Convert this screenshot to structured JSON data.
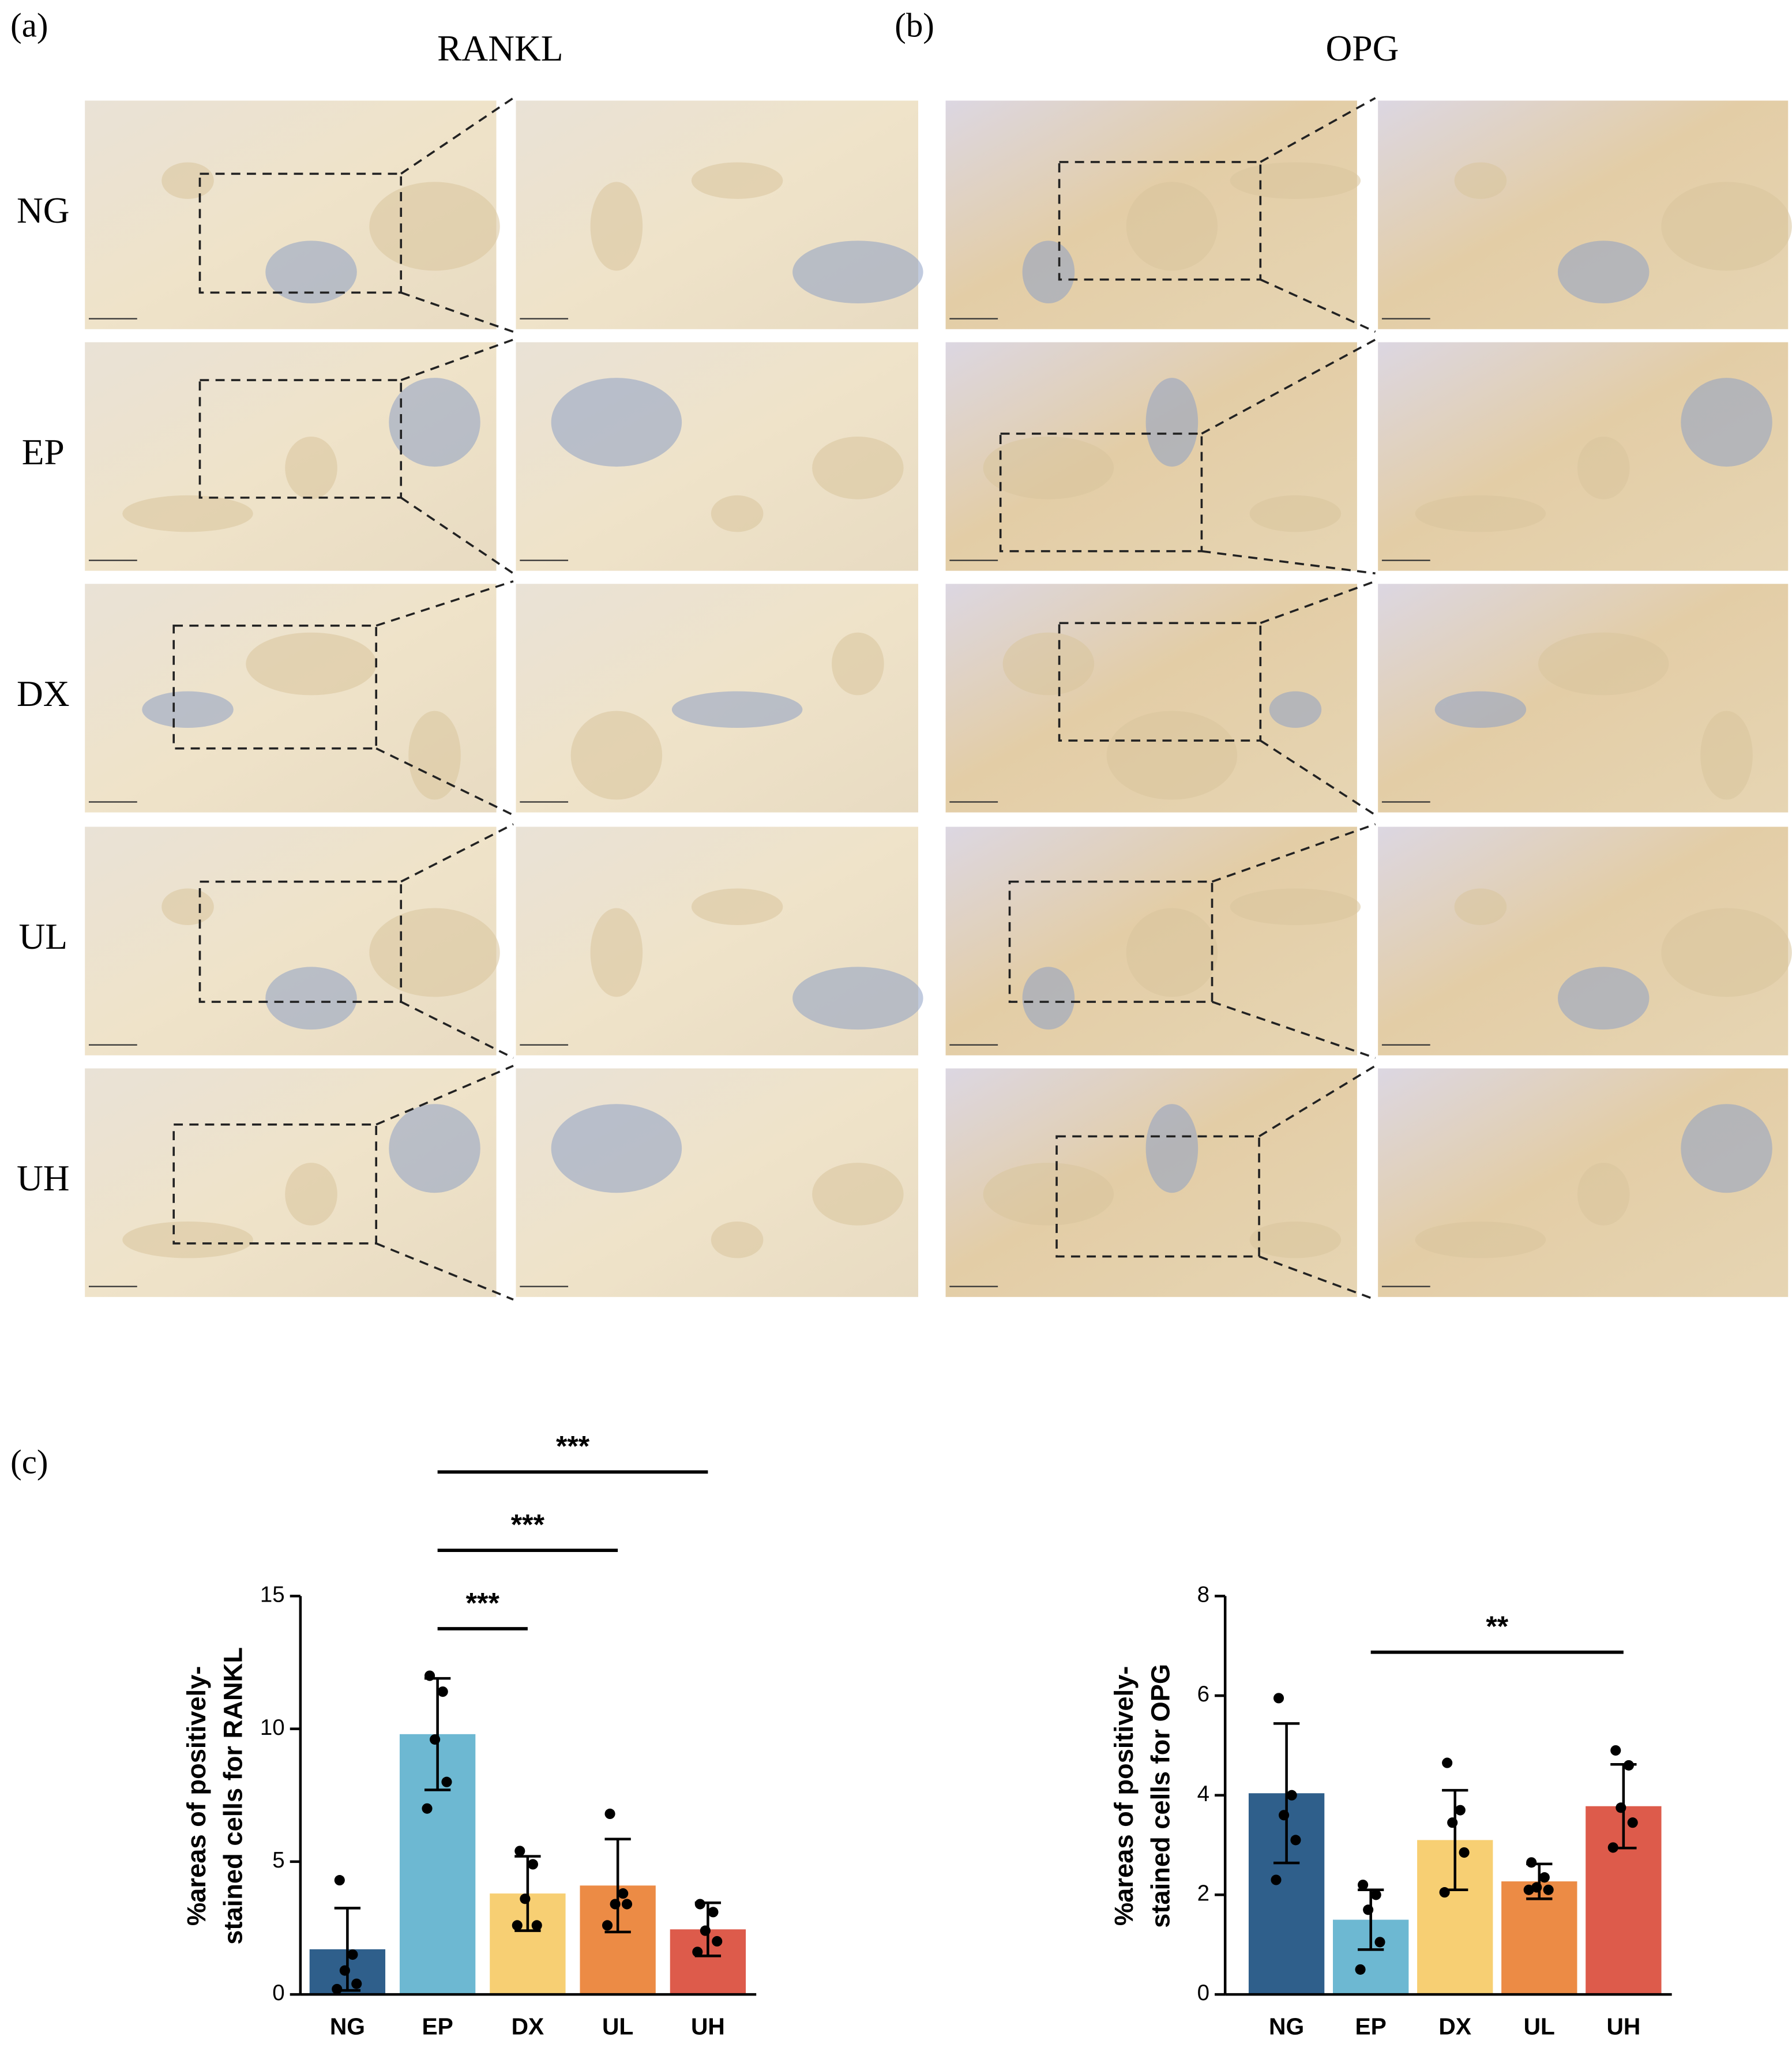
{
  "figure": {
    "panels": [
      {
        "label": "(a)",
        "title": "RANKL"
      },
      {
        "label": "(b)",
        "title": "OPG"
      },
      {
        "label": "(c)"
      }
    ],
    "rows": [
      "NG",
      "EP",
      "DX",
      "UL",
      "UH"
    ]
  },
  "chart_data": [
    {
      "type": "bar",
      "y_label": [
        "%areas of positively-",
        "stained cells for RANKL"
      ],
      "categories": [
        "NG",
        "EP",
        "DX",
        "UL",
        "UH"
      ],
      "values": [
        1.7,
        9.8,
        3.8,
        4.1,
        2.45
      ],
      "errors": [
        1.55,
        2.1,
        1.4,
        1.75,
        1.0
      ],
      "points": [
        [
          4.3,
          1.5,
          0.9,
          0.4,
          0.2
        ],
        [
          12.0,
          11.4,
          9.6,
          8.0,
          7.0
        ],
        [
          5.4,
          4.9,
          3.6,
          2.6,
          2.6
        ],
        [
          6.8,
          3.8,
          3.4,
          3.4,
          2.6
        ],
        [
          3.4,
          3.1,
          2.4,
          2.0,
          1.6
        ]
      ],
      "colors": [
        "#2f5f8b",
        "#6db8d2",
        "#f7cf73",
        "#ec8b45",
        "#dd5b4b"
      ],
      "ylim": [
        0,
        15
      ],
      "yticks": [
        0,
        5,
        10,
        15
      ],
      "significance": [
        {
          "label": "***",
          "between": [
            "EP",
            "DX"
          ]
        },
        {
          "label": "***",
          "between": [
            "EP",
            "UL"
          ]
        },
        {
          "label": "***",
          "between": [
            "EP",
            "UH"
          ]
        }
      ]
    },
    {
      "type": "bar",
      "y_label": [
        "%areas of positively-",
        "stained cells for OPG"
      ],
      "categories": [
        "NG",
        "EP",
        "DX",
        "UL",
        "UH"
      ],
      "values": [
        4.04,
        1.5,
        3.1,
        2.27,
        3.78
      ],
      "errors": [
        1.4,
        0.6,
        1.0,
        0.35,
        0.84
      ],
      "points": [
        [
          5.95,
          4.0,
          3.6,
          3.1,
          2.3
        ],
        [
          2.2,
          2.0,
          1.7,
          1.05,
          0.5
        ],
        [
          4.65,
          3.7,
          3.45,
          2.85,
          2.05
        ],
        [
          2.65,
          2.35,
          2.15,
          2.1,
          2.1
        ],
        [
          4.9,
          4.6,
          3.75,
          3.45,
          2.95
        ]
      ],
      "colors": [
        "#2f5f8b",
        "#6db8d2",
        "#f7cf73",
        "#ec8b45",
        "#dd5b4b"
      ],
      "ylim": [
        0,
        8
      ],
      "yticks": [
        0,
        2,
        4,
        6,
        8
      ],
      "significance": [
        {
          "label": "**",
          "between": [
            "EP",
            "UH"
          ]
        }
      ]
    }
  ]
}
